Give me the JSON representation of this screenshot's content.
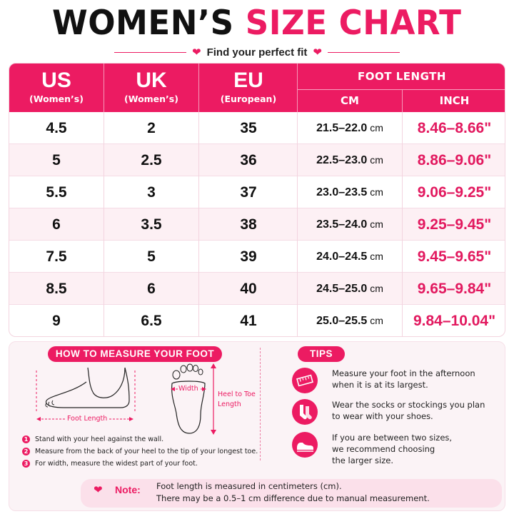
{
  "title": {
    "part1": "WOMEN’S",
    "part2": "SIZE CHART"
  },
  "subtitle": "Find your perfect fit",
  "colors": {
    "accent": "#ec1b62",
    "row_alt": "#fdf0f4",
    "text": "#111111"
  },
  "table": {
    "headers": {
      "us": {
        "main": "US",
        "sub": "(Women’s)"
      },
      "uk": {
        "main": "UK",
        "sub": "(Women’s)"
      },
      "eu": {
        "main": "EU",
        "sub": "(European)"
      },
      "foot_length": "FOOT LENGTH",
      "cm": "CM",
      "inch": "INCH"
    },
    "rows": [
      {
        "us": "4.5",
        "uk": "2",
        "eu": "35",
        "cm": "21.5–22.0",
        "cm_unit": " cm",
        "inch": "8.46–8.66\""
      },
      {
        "us": "5",
        "uk": "2.5",
        "eu": "36",
        "cm": "22.5–23.0",
        "cm_unit": " cm",
        "inch": "8.86–9.06\""
      },
      {
        "us": "5.5",
        "uk": "3",
        "eu": "37",
        "cm": "23.0–23.5",
        "cm_unit": " cm",
        "inch": "9.06–9.25\""
      },
      {
        "us": "6",
        "uk": "3.5",
        "eu": "38",
        "cm": "23.5–24.0",
        "cm_unit": " cm",
        "inch": "9.25–9.45\""
      },
      {
        "us": "7.5",
        "uk": "5",
        "eu": "39",
        "cm": "24.0–24.5",
        "cm_unit": " cm",
        "inch": "9.45–9.65\""
      },
      {
        "us": "8.5",
        "uk": "6",
        "eu": "40",
        "cm": "24.5–25.0",
        "cm_unit": " cm",
        "inch": "9.65–9.84\""
      },
      {
        "us": "9",
        "uk": "6.5",
        "eu": "41",
        "cm": "25.0–25.5",
        "cm_unit": " cm",
        "inch": "9.84–10.04\""
      }
    ]
  },
  "measure": {
    "heading": "HOW TO MEASURE YOUR FOOT",
    "foot_length_label": "Foot Length",
    "width_label": "Width",
    "heel_to_toe_line1": "Heel to Toe",
    "heel_to_toe_line2": "Length",
    "steps": [
      {
        "num": "1",
        "text": "Stand with your heel against the wall."
      },
      {
        "num": "2",
        "text": "Measure from the back of your heel to the tip of your longest toe."
      },
      {
        "num": "3",
        "text": "For width, measure the widest part of your foot."
      }
    ]
  },
  "tips": {
    "heading": "TIPS",
    "items": [
      {
        "icon": "ruler-icon",
        "line1": "Measure your foot in the afternoon",
        "line2": "when it is at its largest.",
        "line3": ""
      },
      {
        "icon": "socks-icon",
        "line1": "Wear the socks or stockings you plan",
        "line2": "to wear with your shoes.",
        "line3": ""
      },
      {
        "icon": "shoe-icon",
        "line1": "If you are between two sizes,",
        "line2": "we recommend choosing",
        "line3": "the larger size."
      }
    ]
  },
  "note": {
    "label": "Note:",
    "line1": "Foot length is measured in centimeters (cm).",
    "line2": "There may be a 0.5–1 cm difference due to manual measurement."
  }
}
